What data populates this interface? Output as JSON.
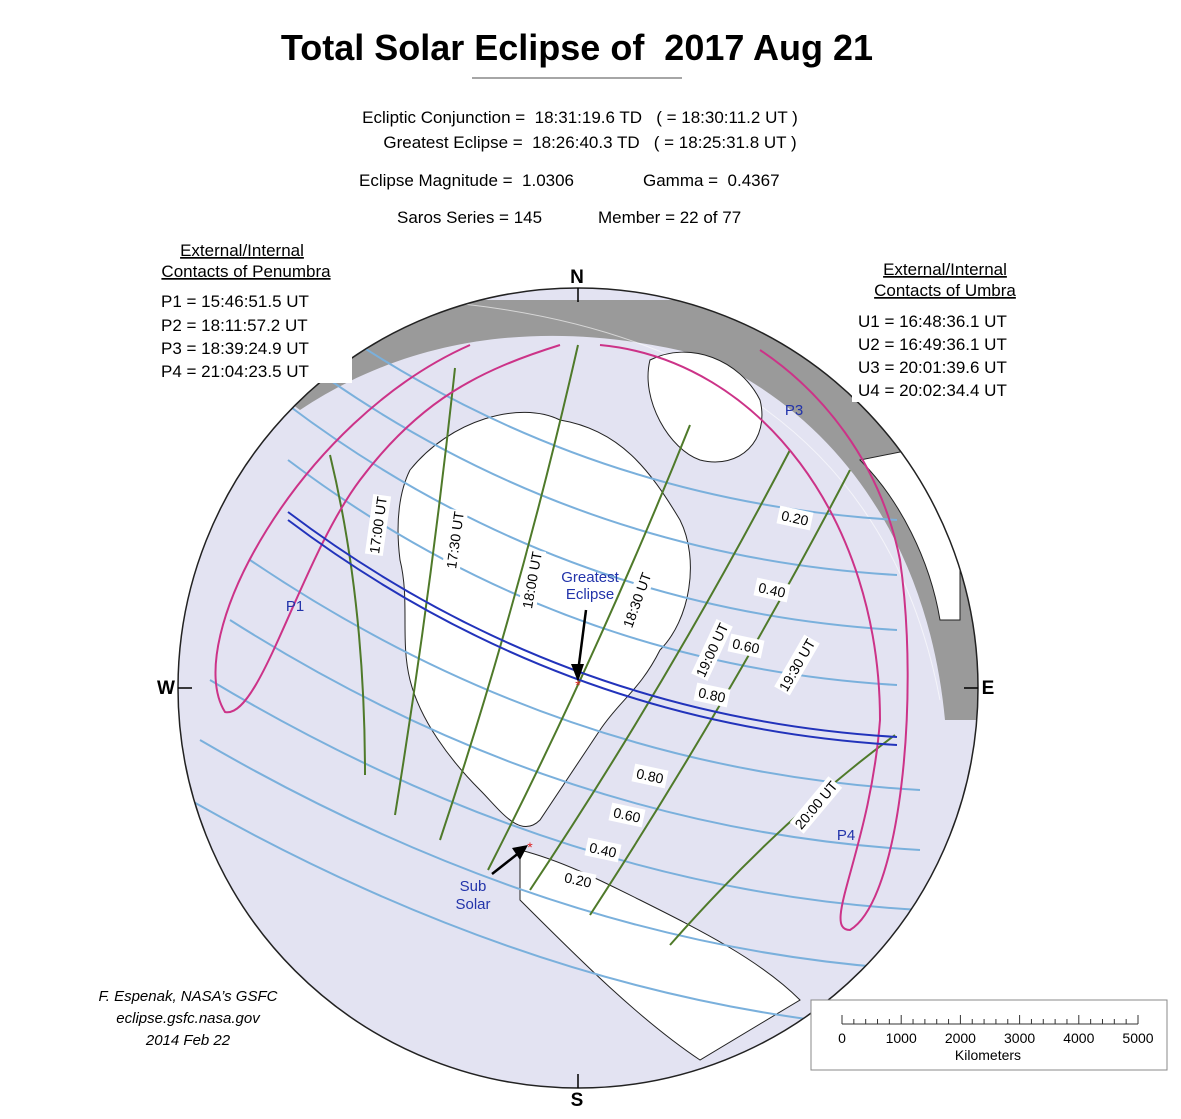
{
  "title": "Total Solar Eclipse of  2017 Aug 21",
  "info": [
    "Ecliptic Conjunction =  18:31:19.6 TD   ( = 18:30:11.2 UT )",
    "Greatest Eclipse =  18:26:40.3 TD   ( = 18:25:31.8 UT )",
    "Eclipse Magnitude =  1.0306",
    "Gamma =  0.4367",
    "Saros Series = 145",
    "Member = 22 of 77"
  ],
  "penumbra": {
    "title": [
      "External/Internal",
      "Contacts of Penumbra"
    ],
    "contacts": [
      "P1 = 15:46:51.5 UT",
      "P2 = 18:11:57.2 UT",
      "P3 = 18:39:24.9 UT",
      "P4 = 21:04:23.5 UT"
    ]
  },
  "umbra": {
    "title": [
      "External/Internal",
      "Contacts of Umbra"
    ],
    "contacts": [
      "U1 = 16:48:36.1 UT",
      "U2 = 16:49:36.1 UT",
      "U3 = 20:01:39.6 UT",
      "U4 = 20:02:34.4 UT"
    ]
  },
  "compass": {
    "north": "N",
    "south": "S",
    "east": "E",
    "west": "W"
  },
  "time_labels": [
    "17:00 UT",
    "17:30 UT",
    "18:00 UT",
    "18:30 UT",
    "19:00 UT",
    "19:30 UT",
    "20:00 UT"
  ],
  "magnitude_labels": {
    "north": [
      "0.20",
      "0.40",
      "0.60",
      "0.80"
    ],
    "south": [
      "0.80",
      "0.60",
      "0.40",
      "0.20"
    ]
  },
  "contact_points": [
    "P1",
    "P3",
    "P4"
  ],
  "greatest_eclipse": [
    "Greatest",
    "Eclipse"
  ],
  "sub_solar": [
    "Sub",
    "Solar"
  ],
  "credits": [
    "F. Espenak, NASA’s GSFC",
    "eclipse.gsfc.nasa.gov",
    "2014 Feb 22"
  ],
  "scale": {
    "ticks": [
      "0",
      "1000",
      "2000",
      "3000",
      "4000",
      "5000"
    ],
    "unit": "Kilometers"
  }
}
